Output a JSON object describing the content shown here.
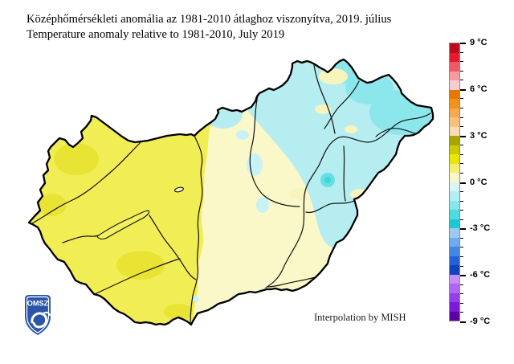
{
  "title": {
    "line1": "Középhőmérsékleti anomália az 1981-2010 átlaghoz viszonyítva, 2019. július",
    "line2": "Temperature anomaly relative to 1981-2010, July 2019"
  },
  "credit": "Interpolation by MISH",
  "logo": {
    "text": "OMSZ",
    "shield_color": "#2B55A8"
  },
  "map_colors": {
    "base_pale_yellow": "#FAF8C8",
    "west_yellow": "#F1ED55",
    "deep_yellow": "#E9E434",
    "light_cyan": "#B6EDF0",
    "mid_cyan": "#8BE7EC",
    "patch_pale_yellow": "#F7F4BE",
    "patch_light_cyan": "#C9F2F4",
    "spot_cyan": "#66DEE4",
    "spot_cyan_core": "#3FD5DD",
    "border_color": "#000000",
    "river_color": "#111111"
  },
  "colorbar": {
    "unit": "°C",
    "max": 9,
    "min": -9,
    "bands": 30,
    "labels": [
      {
        "text": "9 °C",
        "band_index": 0
      },
      {
        "text": "6 °C",
        "band_index": 5
      },
      {
        "text": "3 °C",
        "band_index": 10
      },
      {
        "text": "0 °C",
        "band_index": 15
      },
      {
        "text": "-3 °C",
        "band_index": 20
      },
      {
        "text": "-6 °C",
        "band_index": 25
      },
      {
        "text": "-9 °C",
        "band_index": 30
      }
    ],
    "segment_colors": [
      "#BE0A1E",
      "#E41B2C",
      "#EE5A64",
      "#F49AA0",
      "#FACCD0",
      "#E67800",
      "#F0931E",
      "#F4A94C",
      "#F8C17E",
      "#FBDCB2",
      "#A8A400",
      "#CCCA00",
      "#EAE600",
      "#F2EE70",
      "#F9F7C4",
      "#D9F7F7",
      "#B2EFF2",
      "#84E7EC",
      "#4FDBE1",
      "#1CC9D3",
      "#9FC8F3",
      "#6FA9EE",
      "#4287E6",
      "#2361D6",
      "#1243BC",
      "#C48EF6",
      "#AE66F0",
      "#9540E6",
      "#7B1AD8",
      "#5A00A5"
    ]
  }
}
